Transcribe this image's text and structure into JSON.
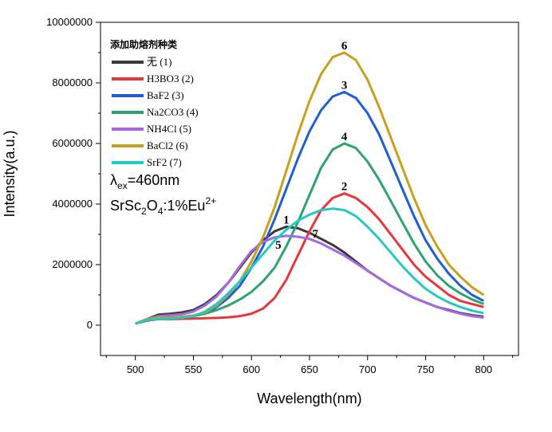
{
  "chart_data": {
    "type": "line",
    "title": "",
    "xlabel": "Wavelength(nm)",
    "ylabel": "Intensity(a.u.)",
    "xlim": [
      470,
      830
    ],
    "ylim": [
      -1000000,
      10000000
    ],
    "x_ticks": [
      500,
      550,
      600,
      650,
      700,
      750,
      800
    ],
    "y_ticks": [
      0,
      2000000,
      4000000,
      6000000,
      8000000,
      10000000
    ],
    "grid": false,
    "legend": {
      "title": "添加助熔剂种类",
      "placement": "top-left"
    },
    "annotations": {
      "lambda_symbol": "λ",
      "lambda_sub": "ex",
      "lambda_value": "=460nm",
      "formula_a": "SrSc",
      "formula_sub2": "2",
      "formula_b": "O",
      "formula_sub4": "4",
      "formula_c": ":1%Eu",
      "formula_sup": "2+"
    },
    "series": [
      {
        "name": "无",
        "legend_num": "(1)",
        "label": "1",
        "color": "#3a3a3a",
        "x": [
          500,
          510,
          520,
          530,
          540,
          550,
          560,
          570,
          580,
          590,
          600,
          610,
          620,
          630,
          640,
          650,
          660,
          670,
          680,
          690,
          700,
          710,
          720,
          730,
          740,
          750,
          760,
          770,
          780,
          790,
          800
        ],
        "y": [
          50000,
          200000,
          350000,
          380000,
          420000,
          500000,
          700000,
          1000000,
          1400000,
          1900000,
          2400000,
          2800000,
          3100000,
          3250000,
          3200000,
          3050000,
          2850000,
          2650000,
          2400000,
          2100000,
          1800000,
          1550000,
          1300000,
          1100000,
          900000,
          750000,
          600000,
          500000,
          400000,
          330000,
          280000
        ]
      },
      {
        "name": "H3BO3",
        "legend_num": "(2)",
        "label": "2",
        "color": "#e8373a",
        "x": [
          500,
          510,
          520,
          530,
          540,
          550,
          560,
          570,
          580,
          590,
          600,
          610,
          620,
          630,
          640,
          650,
          660,
          670,
          680,
          690,
          700,
          710,
          720,
          730,
          740,
          750,
          760,
          770,
          780,
          790,
          800
        ],
        "y": [
          50000,
          150000,
          200000,
          200000,
          210000,
          220000,
          230000,
          240000,
          260000,
          300000,
          380000,
          550000,
          900000,
          1500000,
          2300000,
          3100000,
          3800000,
          4200000,
          4350000,
          4200000,
          3900000,
          3500000,
          3000000,
          2500000,
          2000000,
          1600000,
          1300000,
          1000000,
          800000,
          700000,
          600000
        ]
      },
      {
        "name": "BaF2",
        "legend_num": "(3)",
        "label": "3",
        "color": "#1f5fd1",
        "x": [
          500,
          510,
          520,
          530,
          540,
          550,
          560,
          570,
          580,
          590,
          600,
          610,
          620,
          630,
          640,
          650,
          660,
          670,
          680,
          690,
          700,
          710,
          720,
          730,
          740,
          750,
          760,
          770,
          780,
          790,
          800
        ],
        "y": [
          50000,
          180000,
          200000,
          220000,
          250000,
          300000,
          400000,
          600000,
          900000,
          1300000,
          1900000,
          2600000,
          3500000,
          4500000,
          5500000,
          6400000,
          7100000,
          7550000,
          7700000,
          7500000,
          7000000,
          6300000,
          5400000,
          4500000,
          3600000,
          2800000,
          2200000,
          1700000,
          1300000,
          1000000,
          800000
        ]
      },
      {
        "name": "Na2CO3",
        "legend_num": "(4)",
        "label": "4",
        "color": "#2ea36f",
        "x": [
          500,
          510,
          520,
          530,
          540,
          550,
          560,
          570,
          580,
          590,
          600,
          610,
          620,
          630,
          640,
          650,
          660,
          670,
          680,
          690,
          700,
          710,
          720,
          730,
          740,
          750,
          760,
          770,
          780,
          790,
          800
        ],
        "y": [
          50000,
          170000,
          200000,
          220000,
          250000,
          300000,
          380000,
          500000,
          650000,
          850000,
          1100000,
          1450000,
          1900000,
          2600000,
          3400000,
          4300000,
          5200000,
          5800000,
          6000000,
          5850000,
          5400000,
          4800000,
          4100000,
          3400000,
          2700000,
          2100000,
          1650000,
          1300000,
          1050000,
          850000,
          700000
        ]
      },
      {
        "name": "NH4Cl",
        "legend_num": "(5)",
        "label": "5",
        "color": "#a868e0",
        "x": [
          500,
          510,
          520,
          530,
          540,
          550,
          560,
          570,
          580,
          590,
          600,
          610,
          620,
          630,
          640,
          650,
          660,
          670,
          680,
          690,
          700,
          710,
          720,
          730,
          740,
          750,
          760,
          770,
          780,
          790,
          800
        ],
        "y": [
          50000,
          200000,
          300000,
          330000,
          360000,
          450000,
          650000,
          950000,
          1400000,
          1950000,
          2450000,
          2750000,
          2900000,
          2950000,
          2920000,
          2850000,
          2700000,
          2500000,
          2300000,
          2050000,
          1800000,
          1550000,
          1300000,
          1100000,
          900000,
          750000,
          600000,
          480000,
          380000,
          300000,
          250000
        ]
      },
      {
        "name": "BaCl2",
        "legend_num": "(6)",
        "label": "6",
        "color": "#c8a020",
        "x": [
          500,
          510,
          520,
          530,
          540,
          550,
          560,
          570,
          580,
          590,
          600,
          610,
          620,
          630,
          640,
          650,
          660,
          670,
          680,
          690,
          700,
          710,
          720,
          730,
          740,
          750,
          760,
          770,
          780,
          790,
          800
        ],
        "y": [
          50000,
          200000,
          250000,
          250000,
          280000,
          320000,
          420000,
          650000,
          1000000,
          1450000,
          2100000,
          2900000,
          3900000,
          5100000,
          6300000,
          7400000,
          8300000,
          8850000,
          9000000,
          8750000,
          8100000,
          7200000,
          6200000,
          5200000,
          4200000,
          3300000,
          2600000,
          2000000,
          1600000,
          1250000,
          1000000
        ]
      },
      {
        "name": "SrF2",
        "legend_num": "(7)",
        "label": "7",
        "color": "#24c9c4",
        "x": [
          500,
          510,
          520,
          530,
          540,
          550,
          560,
          570,
          580,
          590,
          600,
          610,
          620,
          630,
          640,
          650,
          660,
          670,
          680,
          690,
          700,
          710,
          720,
          730,
          740,
          750,
          760,
          770,
          780,
          790,
          800
        ],
        "y": [
          50000,
          180000,
          200000,
          220000,
          250000,
          300000,
          450000,
          700000,
          1050000,
          1450000,
          1900000,
          2350000,
          2800000,
          3150000,
          3450000,
          3650000,
          3800000,
          3850000,
          3800000,
          3600000,
          3250000,
          2850000,
          2400000,
          1950000,
          1550000,
          1200000,
          950000,
          750000,
          600000,
          480000,
          400000
        ]
      }
    ]
  }
}
